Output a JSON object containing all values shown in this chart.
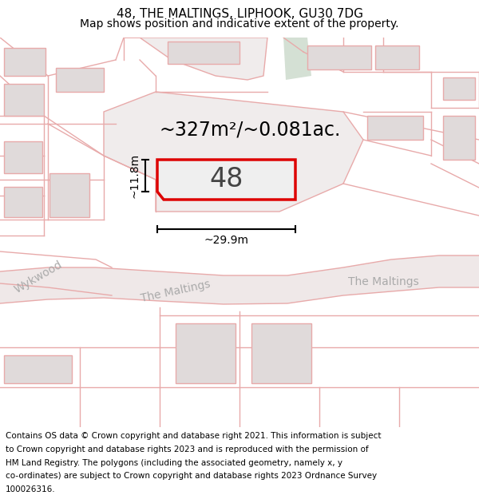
{
  "title_line1": "48, THE MALTINGS, LIPHOOK, GU30 7DG",
  "title_line2": "Map shows position and indicative extent of the property.",
  "footer_lines": [
    "Contains OS data © Crown copyright and database right 2021. This information is subject",
    "to Crown copyright and database rights 2023 and is reproduced with the permission of",
    "HM Land Registry. The polygons (including the associated geometry, namely x, y",
    "co-ordinates) are subject to Crown copyright and database rights 2023 Ordnance Survey",
    "100026316."
  ],
  "area_text": "~327m²/~0.081ac.",
  "property_number": "48",
  "dim_height": "~11.8m",
  "dim_width": "~29.9m",
  "road_label_wykwood": "Wykwood",
  "road_label_maltings_c": "The Maltings",
  "road_label_maltings_r": "The Maltings",
  "map_bg": "#f7f4f4",
  "parcel_fill": "#f0ecec",
  "building_fill": "#e0dada",
  "green_fill": "#dce8dc",
  "green_fill2": "#d4e0d4",
  "road_line_color": "#e8aaaa",
  "prop_outline": "#dd0000",
  "prop_fill": "#efefef",
  "title_fontsize": 11,
  "subtitle_fontsize": 10,
  "footer_fontsize": 7.5,
  "area_fontsize": 17,
  "num_fontsize": 24,
  "dim_fontsize": 10,
  "road_fontsize": 10
}
